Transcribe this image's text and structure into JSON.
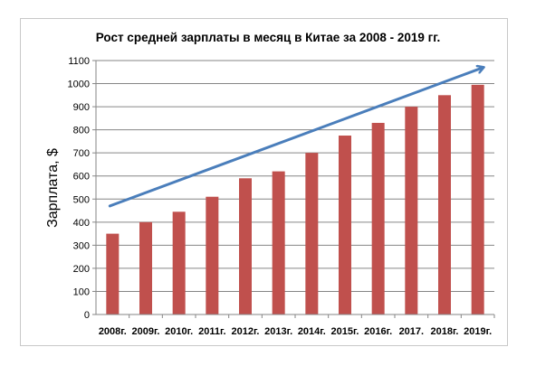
{
  "chart_data": {
    "type": "bar",
    "title": "Рост средней зарплаты в месяц в Китае за 2008 - 2019 гг.",
    "xlabel": "",
    "ylabel": "Зарплата, $",
    "categories": [
      "2008г.",
      "2009г.",
      "2010г.",
      "2011г.",
      "2012г.",
      "2013г.",
      "2014г.",
      "2015г.",
      "2016г.",
      "2017.",
      "2018г.",
      "2019г."
    ],
    "values": [
      350,
      400,
      445,
      510,
      590,
      620,
      700,
      775,
      830,
      900,
      950,
      995
    ],
    "ylim": [
      0,
      1100
    ],
    "yticks": [
      0,
      100,
      200,
      300,
      400,
      500,
      600,
      700,
      800,
      900,
      1000,
      1100
    ],
    "grid": true,
    "legend": "none",
    "colors": {
      "bar": "#c0504d",
      "trend_arrow": "#4a7ebb",
      "grid": "#868686"
    },
    "annotations": [
      {
        "type": "trend-arrow",
        "from": {
          "x": "2008г.",
          "y": 470
        },
        "to": {
          "x": "2019г.",
          "y": 1070
        }
      }
    ]
  }
}
